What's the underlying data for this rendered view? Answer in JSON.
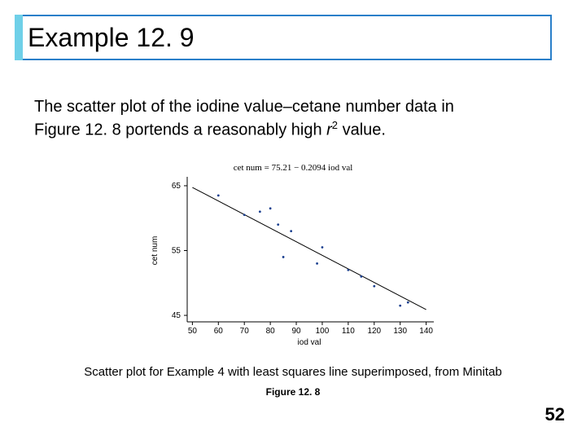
{
  "title": "Example 12. 9",
  "title_fontsize": 32,
  "title_border_color": "#2a7fc9",
  "title_accent_color": "#6fd0e8",
  "body_parts": {
    "line1a": "The scatter plot of the iodine value–cetane number data in",
    "line2a": "Figure 12. 8 portends a reasonably high ",
    "r": "r",
    "exp": "2",
    "line2b": " value."
  },
  "chart": {
    "type": "scatter",
    "equation": "cet num = 75.21 − 0.2094 iod val",
    "xlabel": "iod val",
    "ylabel": "cet num",
    "xlim": [
      48,
      142
    ],
    "ylim": [
      44,
      66
    ],
    "xticks": [
      50,
      60,
      70,
      80,
      90,
      100,
      110,
      120,
      130,
      140
    ],
    "yticks": [
      45,
      55,
      65
    ],
    "points": [
      {
        "x": 60,
        "y": 63.5
      },
      {
        "x": 70,
        "y": 60.5
      },
      {
        "x": 76,
        "y": 61
      },
      {
        "x": 80,
        "y": 61.5
      },
      {
        "x": 83,
        "y": 59
      },
      {
        "x": 85,
        "y": 54
      },
      {
        "x": 88,
        "y": 58
      },
      {
        "x": 98,
        "y": 53
      },
      {
        "x": 100,
        "y": 55.5
      },
      {
        "x": 110,
        "y": 52
      },
      {
        "x": 115,
        "y": 51
      },
      {
        "x": 120,
        "y": 49.5
      },
      {
        "x": 130,
        "y": 46.5
      },
      {
        "x": 133,
        "y": 47
      }
    ],
    "line": {
      "x1": 50,
      "y1": 64.74,
      "x2": 140,
      "y2": 45.89
    },
    "axis_color": "#000000",
    "point_color": "#1a3f8f",
    "point_radius": 1.4,
    "line_color": "#000000",
    "line_width": 1,
    "background_color": "#ffffff",
    "tick_fontsize": 10,
    "label_fontsize": 10
  },
  "caption": "Scatter plot for Example 4 with least squares line superimposed, from Minitab",
  "figure_label": "Figure 12. 8",
  "page_number": "52"
}
